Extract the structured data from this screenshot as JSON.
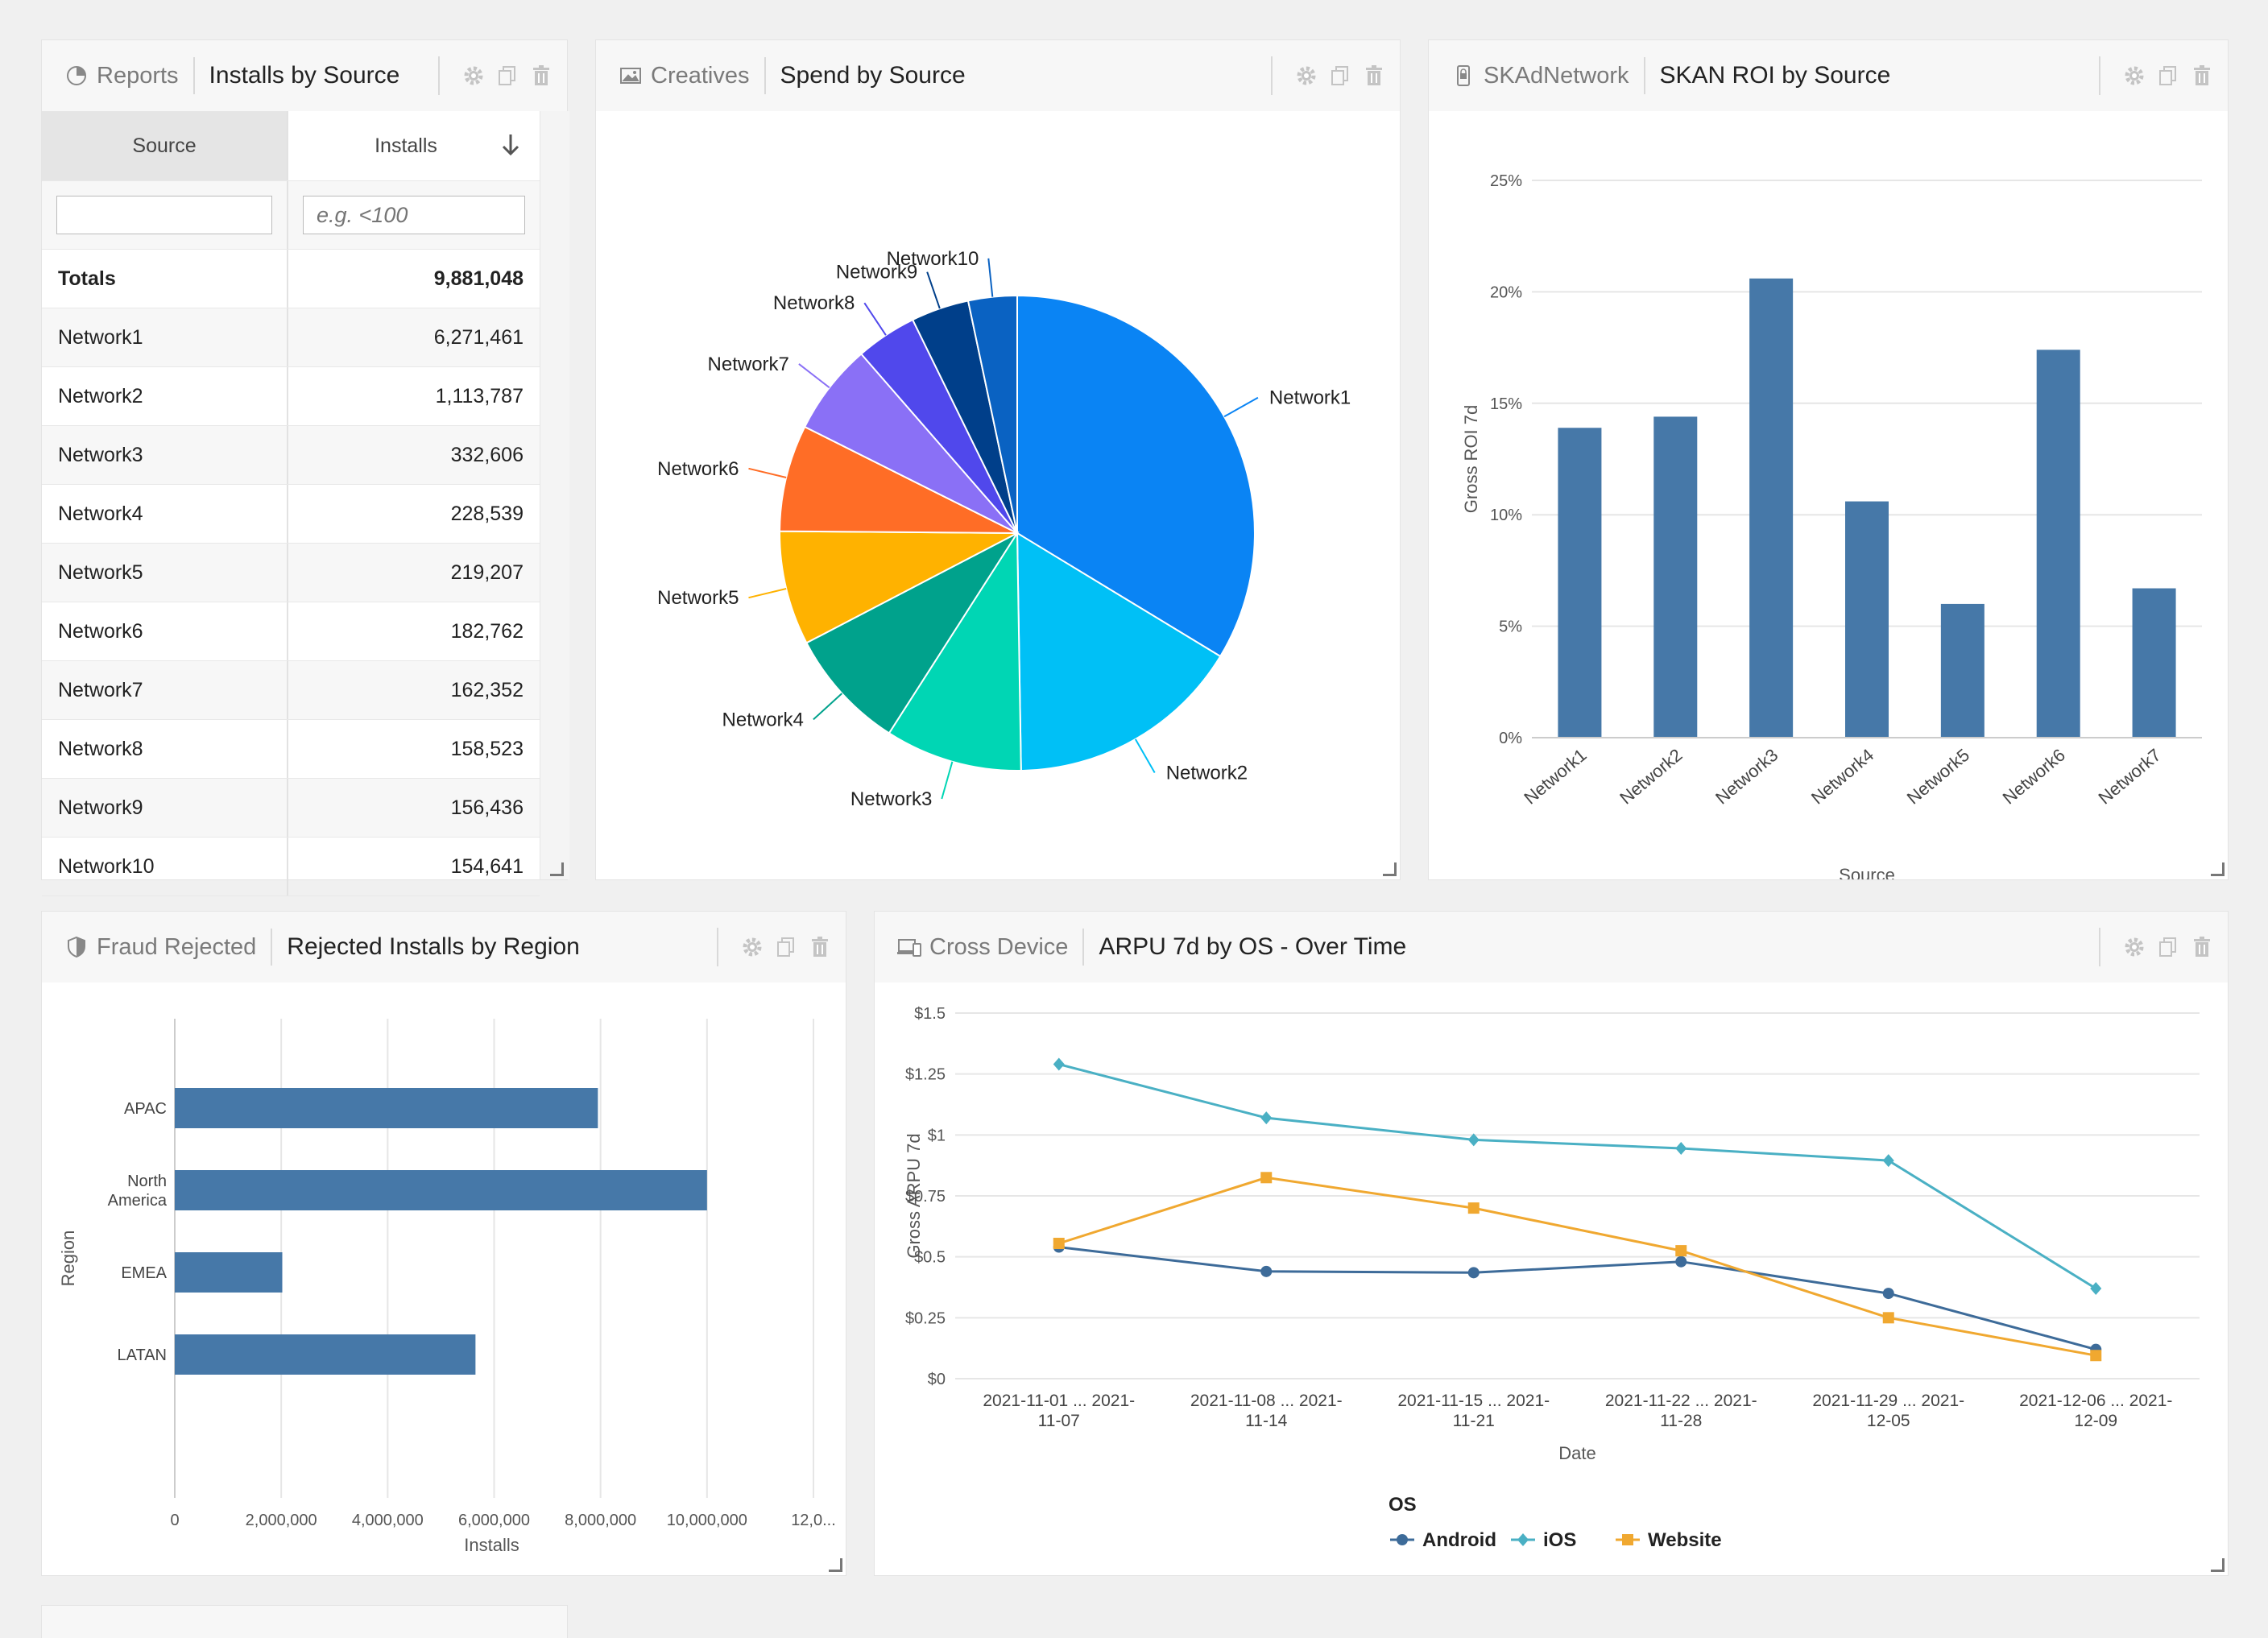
{
  "colors": {
    "bar": "#4678a8",
    "android": "#3d6b99",
    "ios": "#4ab0c4",
    "website": "#f0a830"
  },
  "panels": {
    "installs": {
      "category": "Reports",
      "title": "Installs by Source",
      "col_source": "Source",
      "col_installs": "Installs",
      "filter_placeholder": "e.g. <100",
      "totals_label": "Totals",
      "totals_value": "9,881,048",
      "rows": [
        {
          "source": "Network1",
          "installs": "6,271,461"
        },
        {
          "source": "Network2",
          "installs": "1,113,787"
        },
        {
          "source": "Network3",
          "installs": "332,606"
        },
        {
          "source": "Network4",
          "installs": "228,539"
        },
        {
          "source": "Network5",
          "installs": "219,207"
        },
        {
          "source": "Network6",
          "installs": "182,762"
        },
        {
          "source": "Network7",
          "installs": "162,352"
        },
        {
          "source": "Network8",
          "installs": "158,523"
        },
        {
          "source": "Network9",
          "installs": "156,436"
        },
        {
          "source": "Network10",
          "installs": "154,641"
        }
      ]
    },
    "spend": {
      "category": "Creatives",
      "title": "Spend by Source"
    },
    "skan": {
      "category": "SKAdNetwork",
      "title": "SKAN ROI by Source"
    },
    "fraud": {
      "category": "Fraud Rejected",
      "title": "Rejected Installs by Region"
    },
    "arpu": {
      "category": "Cross Device",
      "title": "ARPU 7d by OS - Over Time"
    }
  },
  "chart_data": [
    {
      "id": "spend",
      "type": "pie",
      "title": "Spend by Source",
      "labels": [
        "Network1",
        "Network2",
        "Network3",
        "Network4",
        "Network5",
        "Network6",
        "Network7",
        "Network8",
        "Network9",
        "Network10"
      ],
      "values": [
        32.5,
        15.5,
        9.0,
        8.0,
        7.5,
        7.0,
        6.0,
        4.0,
        3.8,
        3.2
      ],
      "colors": [
        "#0a84f4",
        "#00c0f6",
        "#00d6b4",
        "#00a28c",
        "#ffb200",
        "#ff6d26",
        "#8a70f6",
        "#5048ec",
        "#003f8a",
        "#0a62c2"
      ]
    },
    {
      "id": "skan",
      "type": "bar",
      "title": "SKAN ROI by Source",
      "categories": [
        "Network1",
        "Network2",
        "Network3",
        "Network4",
        "Network5",
        "Network6",
        "Network7"
      ],
      "values": [
        13.9,
        14.4,
        20.6,
        10.6,
        6.0,
        17.4,
        6.7
      ],
      "xlabel": "Source",
      "ylabel": "Gross ROI 7d",
      "ylim": [
        0,
        25
      ],
      "yticks": [
        "0%",
        "5%",
        "10%",
        "15%",
        "20%",
        "25%"
      ]
    },
    {
      "id": "fraud",
      "type": "bar",
      "orientation": "horizontal",
      "title": "Rejected Installs by Region",
      "categories": [
        "APAC",
        "North America",
        "EMEA",
        "LATAN"
      ],
      "category_lines": [
        [
          "APAC"
        ],
        [
          "North",
          "America"
        ],
        [
          "EMEA"
        ],
        [
          "LATAN"
        ]
      ],
      "values": [
        7950000,
        10000000,
        2020000,
        5650000
      ],
      "xlabel": "Installs",
      "ylabel": "Region",
      "xlim": [
        0,
        12000000
      ],
      "xticks": [
        "0",
        "2,000,000",
        "4,000,000",
        "6,000,000",
        "8,000,000",
        "10,000,000",
        "12,0..."
      ]
    },
    {
      "id": "arpu",
      "type": "line",
      "title": "ARPU 7d by OS - Over Time",
      "categories": [
        "2021-11-01 ... 2021-11-07",
        "2021-11-08 ... 2021-11-14",
        "2021-11-15 ... 2021-11-21",
        "2021-11-22 ... 2021-11-28",
        "2021-11-29 ... 2021-12-05",
        "2021-12-06 ... 2021-12-09"
      ],
      "category_lines": [
        [
          "2021-11-01 ... 2021-",
          "11-07"
        ],
        [
          "2021-11-08 ... 2021-",
          "11-14"
        ],
        [
          "2021-11-15 ... 2021-",
          "11-21"
        ],
        [
          "2021-11-22 ... 2021-",
          "11-28"
        ],
        [
          "2021-11-29 ... 2021-",
          "12-05"
        ],
        [
          "2021-12-06 ... 2021-",
          "12-09"
        ]
      ],
      "series": [
        {
          "name": "Android",
          "values": [
            0.54,
            0.44,
            0.435,
            0.48,
            0.35,
            0.12
          ]
        },
        {
          "name": "iOS",
          "values": [
            1.29,
            1.07,
            0.98,
            0.945,
            0.895,
            0.37
          ]
        },
        {
          "name": "Website",
          "values": [
            0.555,
            0.825,
            0.7,
            0.525,
            0.25,
            0.095
          ]
        }
      ],
      "xlabel": "Date",
      "ylabel": "Gross ARPU 7d",
      "ylim": [
        0,
        1.5
      ],
      "yticks": [
        "$0",
        "$0.25",
        "$0.5",
        "$0.75",
        "$1",
        "$1.25",
        "$1.5"
      ],
      "legend_title": "OS"
    }
  ]
}
